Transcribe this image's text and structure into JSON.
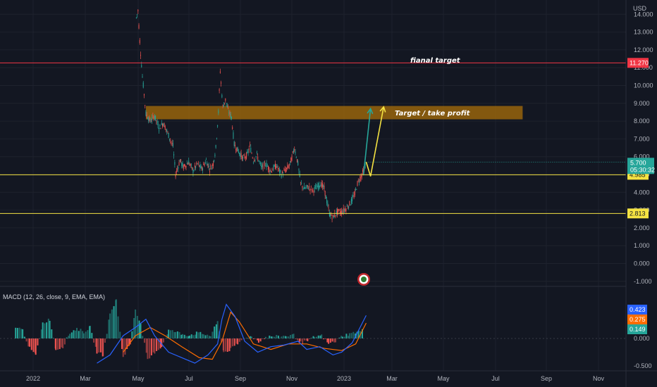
{
  "chart_data": [
    {
      "type": "candlestick",
      "currency": "USD",
      "y_ticks": [
        "-1.000",
        "0.000",
        "1.000",
        "2.000",
        "3.000",
        "4.000",
        "5.000",
        "6.000",
        "7.000",
        "8.000",
        "9.000",
        "10.000",
        "11.000",
        "12.000",
        "13.000",
        "14.000"
      ],
      "x_ticks": [
        "2022",
        "Mar",
        "May",
        "Jul",
        "Sep",
        "Nov",
        "2023",
        "Mar",
        "May",
        "Jul",
        "Sep",
        "Nov"
      ],
      "ylim": [
        -1,
        14.5
      ],
      "price_path": [
        [
          "2022-04-29",
          13.8
        ],
        [
          "2022-05-01",
          14.2
        ],
        [
          "2022-05-03",
          12.5
        ],
        [
          "2022-05-06",
          10.5
        ],
        [
          "2022-05-08",
          9.5
        ],
        [
          "2022-05-10",
          8.4
        ],
        [
          "2022-05-15",
          8.0
        ],
        [
          "2022-05-20",
          8.3
        ],
        [
          "2022-05-25",
          7.6
        ],
        [
          "2022-05-30",
          7.9
        ],
        [
          "2022-06-05",
          7.2
        ],
        [
          "2022-06-10",
          6.6
        ],
        [
          "2022-06-13",
          5.0
        ],
        [
          "2022-06-18",
          5.8
        ],
        [
          "2022-06-22",
          5.4
        ],
        [
          "2022-06-28",
          5.7
        ],
        [
          "2022-07-03",
          5.2
        ],
        [
          "2022-07-08",
          5.6
        ],
        [
          "2022-07-13",
          5.3
        ],
        [
          "2022-07-18",
          5.8
        ],
        [
          "2022-07-22",
          5.3
        ],
        [
          "2022-07-26",
          5.6
        ],
        [
          "2022-07-29",
          6.5
        ],
        [
          "2022-08-01",
          8.5
        ],
        [
          "2022-08-03",
          10.8
        ],
        [
          "2022-08-06",
          8.8
        ],
        [
          "2022-08-09",
          9.2
        ],
        [
          "2022-08-12",
          8.6
        ],
        [
          "2022-08-16",
          8.2
        ],
        [
          "2022-08-19",
          6.7
        ],
        [
          "2022-08-24",
          6.3
        ],
        [
          "2022-08-29",
          5.9
        ],
        [
          "2022-09-03",
          6.1
        ],
        [
          "2022-09-06",
          6.6
        ],
        [
          "2022-09-10",
          5.8
        ],
        [
          "2022-09-14",
          6.1
        ],
        [
          "2022-09-19",
          5.4
        ],
        [
          "2022-09-24",
          5.6
        ],
        [
          "2022-09-30",
          5.2
        ],
        [
          "2022-10-06",
          5.5
        ],
        [
          "2022-10-12",
          5.0
        ],
        [
          "2022-10-18",
          5.3
        ],
        [
          "2022-10-22",
          5.6
        ],
        [
          "2022-10-27",
          6.5
        ],
        [
          "2022-10-31",
          5.6
        ],
        [
          "2022-11-03",
          4.5
        ],
        [
          "2022-11-07",
          4.2
        ],
        [
          "2022-11-12",
          4.3
        ],
        [
          "2022-11-17",
          4.1
        ],
        [
          "2022-11-22",
          4.3
        ],
        [
          "2022-11-26",
          4.5
        ],
        [
          "2022-11-30",
          4.2
        ],
        [
          "2022-12-03",
          3.5
        ],
        [
          "2022-12-06",
          2.8
        ],
        [
          "2022-12-10",
          2.6
        ],
        [
          "2022-12-15",
          2.9
        ],
        [
          "2022-12-20",
          2.9
        ],
        [
          "2022-12-25",
          3.1
        ],
        [
          "2022-12-30",
          3.4
        ],
        [
          "2023-01-04",
          3.9
        ],
        [
          "2023-01-07",
          4.5
        ],
        [
          "2023-01-10",
          4.8
        ],
        [
          "2023-01-14",
          5.2
        ],
        [
          "2023-01-17",
          5.7
        ]
      ],
      "horizontal_levels": [
        {
          "price": 11.27,
          "label": "11.270",
          "color": "#f23645",
          "note": "fianal target"
        },
        {
          "price": 4.985,
          "label": "4.985",
          "color": "#f5e342"
        },
        {
          "price": 2.813,
          "label": "2.813",
          "color": "#f5e342"
        }
      ],
      "target_zone": {
        "from": 8.1,
        "to": 8.85,
        "start": "2022-05-10",
        "end": "2023-07-15",
        "label": "Target / take profit"
      },
      "projection": {
        "path_a": [
          [
            "2023-01-14",
            5.0
          ],
          [
            "2023-01-22",
            8.7
          ]
        ],
        "path_b": [
          [
            "2023-01-17",
            5.7
          ],
          [
            "2023-01-22",
            4.9
          ],
          [
            "2023-02-06",
            8.8
          ]
        ]
      },
      "last_price": {
        "value": "5.700",
        "countdown": "05:30:32",
        "price": 5.7
      }
    },
    {
      "type": "bar",
      "title": "MACD (12, 26, close, 9, EMA, EMA)",
      "y_ticks": [
        "-0.500",
        "0.000"
      ],
      "ylim": [
        -0.55,
        0.85
      ],
      "legend_values": [
        {
          "value": "0.423",
          "color": "#2962ff"
        },
        {
          "value": "0.275",
          "color": "#ff6d00"
        },
        {
          "value": "0.149",
          "color": "#26a69a"
        }
      ],
      "histogram": [
        [
          "2021-12-12",
          0.22
        ],
        [
          "2021-12-20",
          0.15
        ],
        [
          "2021-12-28",
          -0.18
        ],
        [
          "2022-01-04",
          -0.3
        ],
        [
          "2022-01-12",
          0.28
        ],
        [
          "2022-01-20",
          0.35
        ],
        [
          "2022-01-27",
          -0.2
        ],
        [
          "2022-02-04",
          -0.15
        ],
        [
          "2022-02-12",
          0.1
        ],
        [
          "2022-02-20",
          0.18
        ],
        [
          "2022-02-28",
          0.12
        ],
        [
          "2022-03-07",
          0.2
        ],
        [
          "2022-03-15",
          -0.25
        ],
        [
          "2022-03-22",
          -0.3
        ],
        [
          "2022-03-30",
          0.45
        ],
        [
          "2022-04-06",
          0.7
        ],
        [
          "2022-04-14",
          -0.35
        ],
        [
          "2022-04-22",
          -0.1
        ],
        [
          "2022-04-28",
          0.55
        ],
        [
          "2022-05-04",
          0.25
        ],
        [
          "2022-05-12",
          -0.4
        ],
        [
          "2022-05-20",
          -0.25
        ],
        [
          "2022-05-28",
          -0.15
        ],
        [
          "2022-06-05",
          0.15
        ],
        [
          "2022-06-13",
          0.12
        ],
        [
          "2022-06-21",
          0.08
        ],
        [
          "2022-06-29",
          0.06
        ],
        [
          "2022-07-07",
          0.1
        ],
        [
          "2022-07-15",
          0.08
        ],
        [
          "2022-07-23",
          0.05
        ],
        [
          "2022-07-31",
          0.3
        ],
        [
          "2022-08-07",
          -0.25
        ],
        [
          "2022-08-15",
          -0.2
        ],
        [
          "2022-08-23",
          -0.1
        ],
        [
          "2022-08-31",
          0.02
        ],
        [
          "2022-09-08",
          0.03
        ],
        [
          "2022-09-16",
          -0.05
        ],
        [
          "2022-09-24",
          0.02
        ],
        [
          "2022-10-02",
          0.04
        ],
        [
          "2022-10-10",
          0.03
        ],
        [
          "2022-10-18",
          0.05
        ],
        [
          "2022-10-26",
          0.06
        ],
        [
          "2022-11-03",
          -0.08
        ],
        [
          "2022-11-11",
          -0.05
        ],
        [
          "2022-11-19",
          0.03
        ],
        [
          "2022-11-27",
          0.05
        ],
        [
          "2022-12-05",
          -0.1
        ],
        [
          "2022-12-13",
          -0.05
        ],
        [
          "2022-12-21",
          0.05
        ],
        [
          "2022-12-29",
          0.08
        ],
        [
          "2023-01-06",
          0.12
        ],
        [
          "2023-01-14",
          0.15
        ]
      ],
      "macd_line": [
        [
          "2022-03-15",
          -0.45
        ],
        [
          "2022-03-30",
          -0.3
        ],
        [
          "2022-04-14",
          0.05
        ],
        [
          "2022-04-28",
          0.2
        ],
        [
          "2022-05-10",
          0.35
        ],
        [
          "2022-05-20",
          0.05
        ],
        [
          "2022-06-05",
          -0.25
        ],
        [
          "2022-06-20",
          -0.35
        ],
        [
          "2022-07-05",
          -0.45
        ],
        [
          "2022-07-20",
          -0.3
        ],
        [
          "2022-07-31",
          -0.1
        ],
        [
          "2022-08-05",
          0.35
        ],
        [
          "2022-08-10",
          0.62
        ],
        [
          "2022-08-20",
          0.4
        ],
        [
          "2022-08-31",
          -0.05
        ],
        [
          "2022-09-15",
          -0.25
        ],
        [
          "2022-09-30",
          -0.15
        ],
        [
          "2022-10-15",
          -0.12
        ],
        [
          "2022-10-31",
          -0.05
        ],
        [
          "2022-11-10",
          -0.2
        ],
        [
          "2022-11-25",
          -0.15
        ],
        [
          "2022-12-10",
          -0.3
        ],
        [
          "2022-12-20",
          -0.25
        ],
        [
          "2023-01-01",
          -0.08
        ],
        [
          "2023-01-10",
          0.2
        ],
        [
          "2023-01-17",
          0.42
        ]
      ],
      "signal_line": [
        [
          "2022-04-14",
          -0.25
        ],
        [
          "2022-04-28",
          0.05
        ],
        [
          "2022-05-15",
          0.2
        ],
        [
          "2022-06-01",
          0.05
        ],
        [
          "2022-06-20",
          -0.15
        ],
        [
          "2022-07-10",
          -0.35
        ],
        [
          "2022-07-25",
          -0.38
        ],
        [
          "2022-08-05",
          -0.05
        ],
        [
          "2022-08-15",
          0.48
        ],
        [
          "2022-08-25",
          0.3
        ],
        [
          "2022-09-10",
          -0.1
        ],
        [
          "2022-09-30",
          -0.2
        ],
        [
          "2022-10-20",
          -0.1
        ],
        [
          "2022-11-10",
          -0.1
        ],
        [
          "2022-11-30",
          -0.18
        ],
        [
          "2022-12-20",
          -0.22
        ],
        [
          "2023-01-05",
          -0.1
        ],
        [
          "2023-01-17",
          0.28
        ]
      ]
    }
  ],
  "watermark": {
    "icon": "tradingview-logo-icon"
  }
}
